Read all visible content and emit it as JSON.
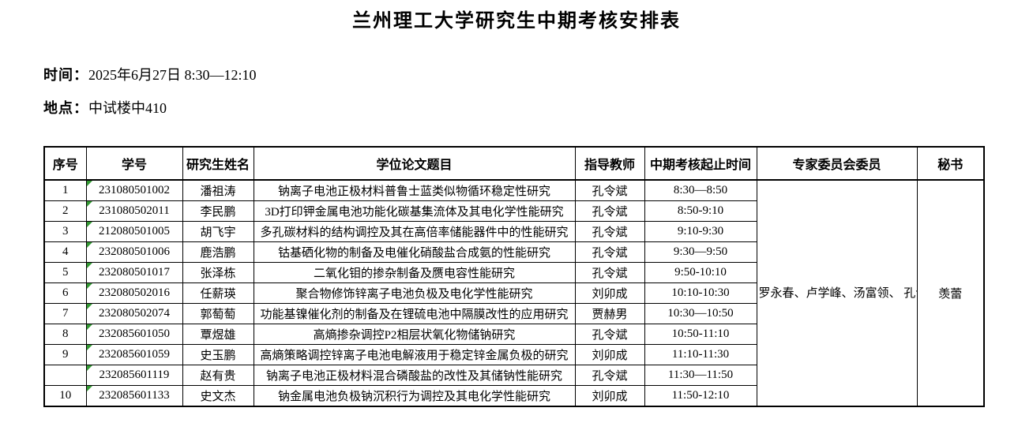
{
  "page": {
    "title": "兰州理工大学研究生中期考核安排表",
    "time_label": "时间：",
    "time_value": "2025年6月27日  8:30—12:10",
    "location_label": "地点：",
    "location_value": "中试楼中410"
  },
  "colors": {
    "background": "#ffffff",
    "border": "#000000",
    "text": "#000000",
    "cell_marker_green": "#339933"
  },
  "table": {
    "headers": [
      "序号",
      "学号",
      "研究生姓名",
      "学位论文题目",
      "指导教师",
      "中期考核起止时间",
      "专家委员会委员",
      "秘书"
    ],
    "rows": [
      {
        "no": "1",
        "student_id": "231080501002",
        "name": "潘祖涛",
        "thesis": "钠离子电池正极材料普鲁士蓝类似物循环稳定性研究",
        "advisor": "孔令斌",
        "time": "8:30—8:50"
      },
      {
        "no": "2",
        "student_id": "231080502011",
        "name": "李民鹏",
        "thesis": "3D打印钾金属电池功能化碳基集流体及其电化学性能研究",
        "advisor": "孔令斌",
        "time": "8:50-9:10"
      },
      {
        "no": "3",
        "student_id": "212080501005",
        "name": "胡飞宇",
        "thesis": "多孔碳材料的结构调控及其在高倍率储能器件中的性能研究",
        "advisor": "孔令斌",
        "time": "9:10-9:30"
      },
      {
        "no": "4",
        "student_id": "232080501006",
        "name": "鹿浩鹏",
        "thesis": "钴基硒化物的制备及电催化硝酸盐合成氨的性能研究",
        "advisor": "孔令斌",
        "time": "9:30—9:50"
      },
      {
        "no": "5",
        "student_id": "232080501017",
        "name": "张泽栋",
        "thesis": "二氧化钼的掺杂制备及赝电容性能研究",
        "advisor": "孔令斌",
        "time": "9:50-10:10"
      },
      {
        "no": "6",
        "student_id": "232080502016",
        "name": "任薪瑛",
        "thesis": "聚合物修饰锌离子电池负极及电化学性能研究",
        "advisor": "刘卯成",
        "time": "10:10-10:30"
      },
      {
        "no": "7",
        "student_id": "232080502074",
        "name": "郭萄萄",
        "thesis": "功能基镍催化剂的制备及在锂硫电池中隔膜改性的应用研究",
        "advisor": "贾赫男",
        "time": "10:30—10:50"
      },
      {
        "no": "8",
        "student_id": "232085601050",
        "name": "覃煜雄",
        "thesis": "高熵掺杂调控P2相层状氧化物储钠研究",
        "advisor": "孔令斌",
        "time": "10:50-11:10"
      },
      {
        "no": "9",
        "student_id": "232085601059",
        "name": "史玉鹏",
        "thesis": "高熵策略调控锌离子电池电解液用于稳定锌金属负极的研究",
        "advisor": "刘卯成",
        "time": "11:10-11:30"
      },
      {
        "no": "",
        "student_id": "232085601119",
        "name": "赵有贵",
        "thesis": "钠离子电池正极材料混合磷酸盐的改性及其储钠性能研究",
        "advisor": "孔令斌",
        "time": "11:30—11:50"
      },
      {
        "no": "10",
        "student_id": "232085601133",
        "name": "史文杰",
        "thesis": "钠金属电池负极钠沉积行为调控及其电化学性能研究",
        "advisor": "刘卯成",
        "time": "11:50-12:10"
      }
    ],
    "committee": "罗永春、卢学峰、汤富领、\n孔令斌、刘卯成",
    "secretary": "羡蕾"
  }
}
